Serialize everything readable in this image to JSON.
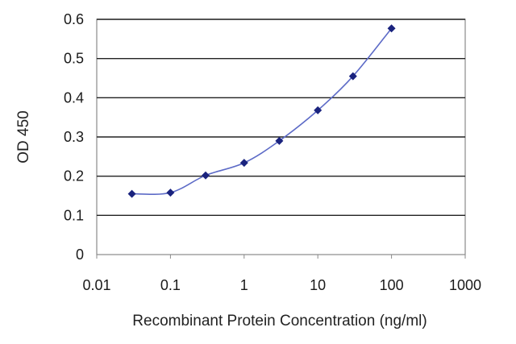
{
  "chart_data": {
    "type": "line",
    "title": "",
    "xlabel": "Recombinant Protein Concentration (ng/ml)",
    "ylabel": "OD 450",
    "x_scale": "log",
    "xlim": [
      0.01,
      1000
    ],
    "ylim": [
      0,
      0.6
    ],
    "x_ticks": [
      "0.01",
      "0.1",
      "1",
      "10",
      "100",
      "1000"
    ],
    "y_ticks": [
      "0",
      "0.1",
      "0.2",
      "0.3",
      "0.4",
      "0.5",
      "0.6"
    ],
    "grid": "horizontal",
    "legend": "none",
    "series": [
      {
        "x": [
          0.03,
          0.1,
          0.3,
          1,
          3,
          10,
          30,
          100
        ],
        "y": [
          0.155,
          0.158,
          0.202,
          0.234,
          0.29,
          0.368,
          0.455,
          0.577
        ]
      }
    ],
    "colors": {
      "line": "#5d6bc7",
      "marker": "#1a237e",
      "gridline": "#222222",
      "axis": "#8a8a8a"
    }
  }
}
